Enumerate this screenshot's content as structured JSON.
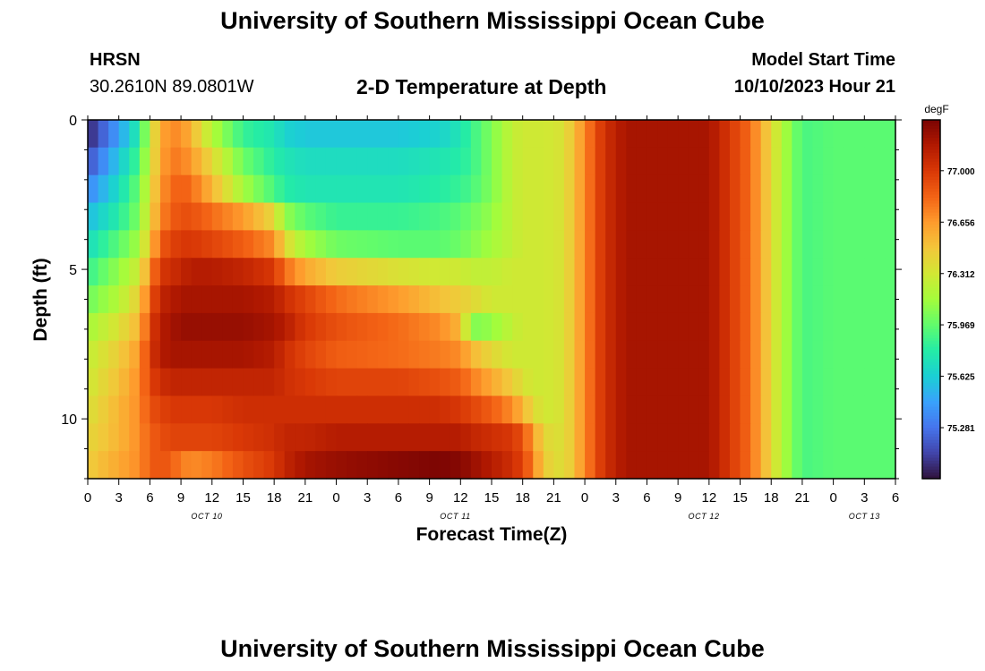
{
  "header": {
    "title": "University of Southern Mississippi Ocean Cube",
    "station": "HRSN",
    "coords": "30.2610N  89.0801W",
    "subtitle": "2-D Temperature at Depth",
    "model_label": "Model Start Time",
    "model_time": "10/10/2023 Hour 21"
  },
  "footer": {
    "title": "University of Southern Mississippi Ocean Cube"
  },
  "chart_data": {
    "type": "heatmap",
    "title": "2-D Temperature at Depth",
    "xlabel": "Forecast Time(Z)",
    "ylabel": "Depth (ft)",
    "x_range_hours": [
      0,
      78
    ],
    "y_range_ft": [
      0,
      12
    ],
    "x_tick_labels": [
      "0",
      "3",
      "6",
      "9",
      "12",
      "15",
      "18",
      "21",
      "0",
      "3",
      "6",
      "9",
      "12",
      "15",
      "18",
      "21",
      "0",
      "3",
      "6",
      "9",
      "12",
      "15",
      "18",
      "21",
      "0",
      "3",
      "6"
    ],
    "y_tick_labels": [
      "0",
      "5",
      "10"
    ],
    "y_tick_values": [
      0,
      5,
      10
    ],
    "date_labels": [
      {
        "text": "OCT 10",
        "hour": 11.5
      },
      {
        "text": "OCT 11",
        "hour": 35.5
      },
      {
        "text": "OCT 12",
        "hour": 59.5
      },
      {
        "text": "OCT 13",
        "hour": 75
      }
    ],
    "colorbar": {
      "unit": "degF",
      "min": 74.94,
      "max": 77.34,
      "tick_labels": [
        "77.000",
        "76.656",
        "76.312",
        "75.969",
        "75.625",
        "75.281"
      ],
      "tick_values": [
        77.0,
        76.656,
        76.312,
        75.969,
        75.625,
        75.281
      ],
      "colors": [
        "#30123b",
        "#4145ab",
        "#4675ed",
        "#39a2fc",
        "#1bcfd4",
        "#24eca6",
        "#61fc6c",
        "#a4fc3b",
        "#d1e834",
        "#f3c63a",
        "#fe9b2d",
        "#f36315",
        "#d93806",
        "#b11901",
        "#7a0403"
      ]
    },
    "depth_levels_ft": [
      0,
      1,
      2,
      3,
      4,
      5,
      6,
      7,
      8,
      9,
      10,
      11,
      12
    ],
    "temperature_keyframes": {
      "hours": [
        0,
        3,
        5,
        6,
        7,
        8,
        9,
        10,
        12,
        15,
        18,
        19,
        21,
        24,
        30,
        34,
        36,
        37,
        39,
        41,
        42,
        43,
        44,
        46,
        48,
        49,
        50,
        52,
        56,
        60,
        64,
        66,
        67,
        69,
        72,
        78
      ],
      "depths": [
        [
          75.0,
          75.45,
          75.8,
          76.25,
          76.6,
          76.7,
          76.7,
          76.55,
          76.2,
          75.85,
          75.75,
          75.65,
          75.6,
          75.6,
          75.6,
          75.65,
          75.75,
          75.85,
          76.05,
          76.25,
          76.3,
          76.3,
          76.3,
          76.35,
          76.7,
          76.9,
          77.05,
          77.2,
          77.2,
          77.2,
          76.8,
          76.4,
          76.2,
          75.9,
          75.95,
          75.95
        ],
        [
          75.15,
          75.6,
          75.9,
          76.3,
          76.6,
          76.75,
          76.75,
          76.65,
          76.4,
          76.0,
          75.8,
          75.75,
          75.7,
          75.7,
          75.7,
          75.75,
          75.8,
          75.85,
          76.05,
          76.25,
          76.3,
          76.3,
          76.3,
          76.35,
          76.7,
          76.9,
          77.05,
          77.2,
          77.2,
          77.2,
          76.8,
          76.4,
          76.2,
          75.9,
          75.95,
          75.95
        ],
        [
          75.35,
          75.7,
          76.0,
          76.35,
          76.65,
          76.8,
          76.85,
          76.8,
          76.55,
          76.15,
          75.9,
          75.8,
          75.75,
          75.75,
          75.75,
          75.8,
          75.85,
          75.9,
          76.05,
          76.25,
          76.3,
          76.3,
          76.3,
          76.35,
          76.7,
          76.9,
          77.05,
          77.2,
          77.2,
          77.2,
          76.8,
          76.4,
          76.2,
          75.9,
          75.95,
          75.95
        ],
        [
          75.55,
          75.8,
          76.05,
          76.4,
          76.7,
          76.85,
          76.9,
          76.9,
          76.8,
          76.65,
          76.4,
          76.1,
          75.95,
          75.85,
          75.85,
          75.9,
          75.95,
          76.0,
          76.1,
          76.25,
          76.3,
          76.3,
          76.3,
          76.35,
          76.7,
          76.9,
          77.05,
          77.2,
          77.2,
          77.2,
          76.8,
          76.4,
          76.2,
          75.9,
          75.95,
          75.95
        ],
        [
          75.7,
          75.95,
          76.15,
          76.5,
          76.85,
          76.95,
          77.0,
          77.0,
          76.95,
          76.85,
          76.7,
          76.4,
          76.15,
          76.0,
          75.95,
          75.95,
          76.0,
          76.05,
          76.15,
          76.25,
          76.3,
          76.3,
          76.3,
          76.35,
          76.7,
          76.9,
          77.05,
          77.2,
          77.2,
          77.2,
          76.8,
          76.4,
          76.2,
          75.9,
          75.95,
          75.95
        ],
        [
          75.85,
          76.1,
          76.3,
          76.7,
          77.0,
          77.05,
          77.1,
          77.15,
          77.15,
          77.1,
          77.0,
          76.8,
          76.6,
          76.45,
          76.35,
          76.3,
          76.3,
          76.25,
          76.25,
          76.3,
          76.3,
          76.3,
          76.3,
          76.35,
          76.7,
          76.9,
          77.05,
          77.2,
          77.2,
          77.2,
          76.8,
          76.4,
          76.2,
          75.9,
          75.95,
          75.95
        ],
        [
          76.0,
          76.2,
          76.45,
          76.85,
          77.1,
          77.15,
          77.2,
          77.2,
          77.2,
          77.2,
          77.15,
          77.05,
          76.95,
          76.8,
          76.65,
          76.5,
          76.45,
          76.4,
          76.3,
          76.3,
          76.3,
          76.3,
          76.3,
          76.35,
          76.7,
          76.9,
          77.05,
          77.2,
          77.2,
          77.2,
          76.8,
          76.4,
          76.2,
          75.9,
          75.95,
          75.95
        ],
        [
          76.15,
          76.35,
          76.55,
          76.95,
          77.15,
          77.2,
          77.25,
          77.25,
          77.25,
          77.25,
          77.2,
          77.15,
          77.0,
          76.9,
          76.8,
          76.7,
          76.55,
          76.05,
          76.1,
          76.25,
          76.3,
          76.3,
          76.3,
          76.35,
          76.7,
          76.9,
          77.05,
          77.2,
          77.2,
          77.2,
          76.8,
          76.4,
          76.2,
          75.9,
          75.95,
          75.95
        ],
        [
          76.25,
          76.45,
          76.65,
          77.0,
          77.15,
          77.2,
          77.2,
          77.2,
          77.2,
          77.2,
          77.15,
          77.05,
          76.95,
          76.85,
          76.8,
          76.75,
          76.7,
          76.55,
          76.4,
          76.3,
          76.3,
          76.3,
          76.3,
          76.35,
          76.7,
          76.9,
          77.05,
          77.2,
          77.2,
          77.2,
          76.8,
          76.4,
          76.2,
          75.9,
          75.95,
          75.95
        ],
        [
          76.3,
          76.5,
          76.7,
          76.95,
          77.05,
          77.1,
          77.1,
          77.1,
          77.1,
          77.1,
          77.1,
          77.05,
          77.0,
          76.95,
          76.95,
          76.9,
          76.85,
          76.75,
          76.6,
          76.45,
          76.35,
          76.3,
          76.3,
          76.35,
          76.7,
          76.9,
          77.05,
          77.2,
          77.2,
          77.2,
          76.8,
          76.4,
          76.2,
          75.9,
          75.95,
          75.95
        ],
        [
          76.35,
          76.55,
          76.7,
          76.9,
          76.95,
          77.0,
          77.0,
          77.0,
          77.0,
          77.05,
          77.05,
          77.05,
          77.05,
          77.05,
          77.05,
          77.05,
          77.0,
          76.95,
          76.85,
          76.7,
          76.55,
          76.4,
          76.3,
          76.35,
          76.7,
          76.9,
          77.05,
          77.2,
          77.2,
          77.2,
          76.8,
          76.4,
          76.2,
          75.9,
          75.95,
          75.95
        ],
        [
          76.4,
          76.55,
          76.7,
          76.85,
          76.9,
          76.95,
          76.95,
          76.95,
          76.95,
          77.0,
          77.05,
          77.1,
          77.1,
          77.15,
          77.15,
          77.15,
          77.15,
          77.1,
          77.05,
          77.0,
          76.9,
          76.65,
          76.4,
          76.35,
          76.7,
          76.9,
          77.05,
          77.2,
          77.2,
          77.2,
          76.8,
          76.4,
          76.2,
          75.9,
          75.95,
          75.95
        ],
        [
          76.45,
          76.6,
          76.7,
          76.85,
          76.9,
          76.85,
          76.75,
          76.7,
          76.75,
          76.9,
          77.0,
          77.1,
          77.2,
          77.25,
          77.3,
          77.33,
          77.3,
          77.25,
          77.15,
          77.05,
          76.95,
          76.75,
          76.45,
          76.35,
          76.7,
          76.9,
          77.05,
          77.2,
          77.2,
          77.2,
          76.8,
          76.4,
          76.2,
          75.9,
          75.95,
          75.95
        ]
      ]
    }
  }
}
